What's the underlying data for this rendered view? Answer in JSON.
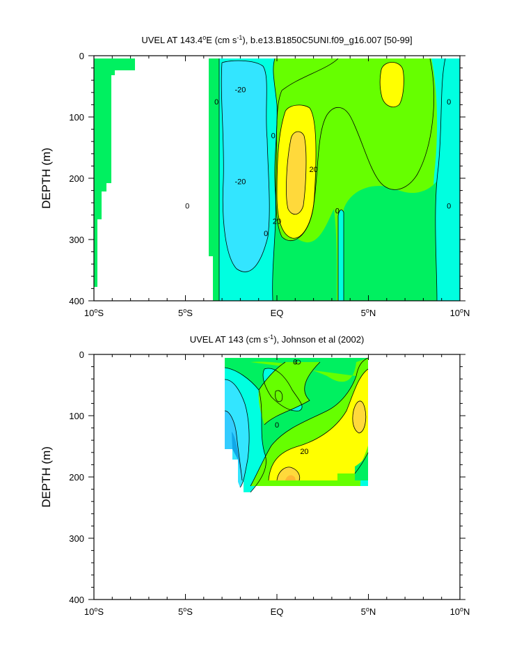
{
  "colors": {
    "n40": "#10A8E8",
    "n30": "#33CCFF",
    "n20": "#33E5FF",
    "n10": "#00FFE0",
    "p0": "#00F060",
    "p10": "#66FF00",
    "p20": "#FFFF00",
    "p30": "#FFD93B",
    "p40": "#FFB833"
  },
  "chart_data": [
    {
      "type": "contour",
      "title_main": "UVEL AT 143.4",
      "title_deg": "o",
      "title_mid": "E (cm s",
      "title_exp": "-1",
      "title_tail": "), b.e13.B1850C5UNI.f09_g16.007 [50-99]",
      "ylabel": "DEPTH (m)",
      "xlim": [
        -10,
        10
      ],
      "ylim": [
        400,
        0
      ],
      "x_ticks": [
        {
          "value": -10,
          "num": "10",
          "sup": "o",
          "hemi": "S"
        },
        {
          "value": -5,
          "num": "5",
          "sup": "o",
          "hemi": "S"
        },
        {
          "value": 0,
          "num": "EQ",
          "sup": "",
          "hemi": ""
        },
        {
          "value": 5,
          "num": "5",
          "sup": "o",
          "hemi": "N"
        },
        {
          "value": 10,
          "num": "10",
          "sup": "o",
          "hemi": "N"
        }
      ],
      "y_ticks": [
        {
          "value": 0,
          "label": "0"
        },
        {
          "value": 100,
          "label": "100"
        },
        {
          "value": 200,
          "label": "200"
        },
        {
          "value": 300,
          "label": "300"
        },
        {
          "value": 400,
          "label": "400"
        }
      ],
      "contour_labels": [
        {
          "text": "-20",
          "lat": -2.0,
          "depth": 55
        },
        {
          "text": "-20",
          "lat": -2.0,
          "depth": 205
        },
        {
          "text": "0",
          "lat": -3.3,
          "depth": 75
        },
        {
          "text": "0",
          "lat": -0.2,
          "depth": 130
        },
        {
          "text": "0",
          "lat": -0.6,
          "depth": 290
        },
        {
          "text": "20",
          "lat": 2.0,
          "depth": 185
        },
        {
          "text": "20",
          "lat": 0.0,
          "depth": 270
        },
        {
          "text": "0",
          "lat": 3.3,
          "depth": 253
        },
        {
          "text": "0",
          "lat": 9.4,
          "depth": 75
        },
        {
          "text": "0",
          "lat": 9.4,
          "depth": 245
        },
        {
          "text": "0",
          "lat": -4.9,
          "depth": 245
        }
      ]
    },
    {
      "type": "contour",
      "title_main": "UVEL AT 143 (cm s",
      "title_exp": "-1",
      "title_tail": "), Johnson et al (2002)",
      "ylabel": "DEPTH (m)",
      "xlim": [
        -10,
        10
      ],
      "ylim": [
        400,
        0
      ],
      "x_ticks": [
        {
          "value": -10,
          "num": "10",
          "sup": "o",
          "hemi": "S"
        },
        {
          "value": -5,
          "num": "5",
          "sup": "o",
          "hemi": "S"
        },
        {
          "value": 0,
          "num": "EQ",
          "sup": "",
          "hemi": ""
        },
        {
          "value": 5,
          "num": "5",
          "sup": "o",
          "hemi": "N"
        },
        {
          "value": 10,
          "num": "10",
          "sup": "o",
          "hemi": "N"
        }
      ],
      "y_ticks": [
        {
          "value": 0,
          "label": "0"
        },
        {
          "value": 100,
          "label": "100"
        },
        {
          "value": 200,
          "label": "200"
        },
        {
          "value": 300,
          "label": "300"
        },
        {
          "value": 400,
          "label": "400"
        }
      ],
      "contour_labels": [
        {
          "text": "0",
          "lat": 1.0,
          "depth": 12
        },
        {
          "text": "0",
          "lat": 0.0,
          "depth": 115
        },
        {
          "text": "20",
          "lat": 1.5,
          "depth": 158
        }
      ]
    }
  ]
}
